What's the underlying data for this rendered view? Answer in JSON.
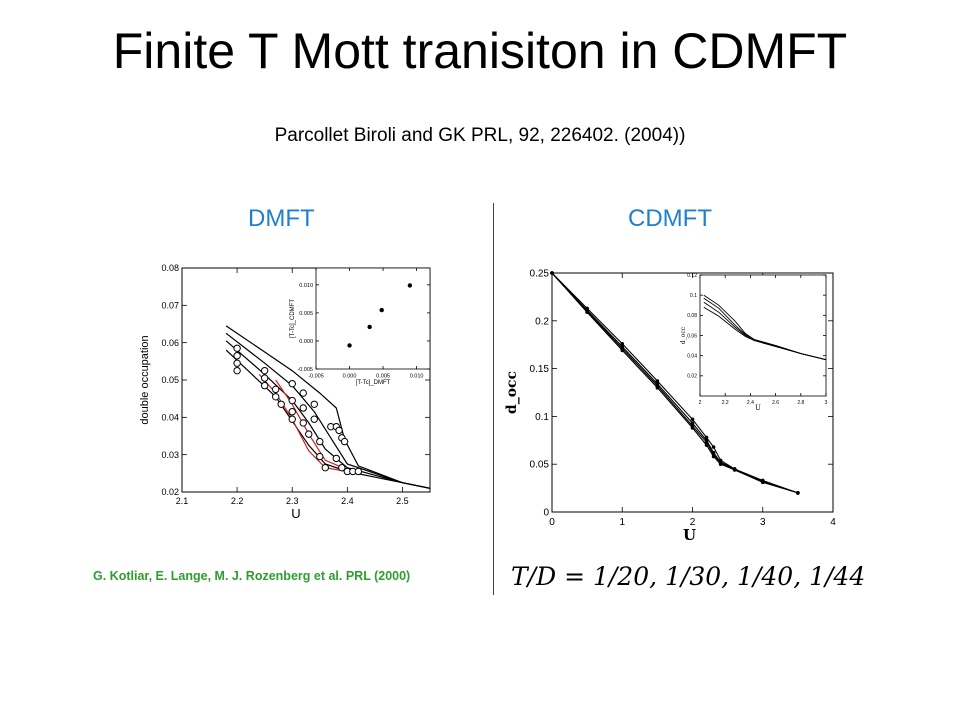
{
  "slide": {
    "title": "Finite T Mott tranisiton in CDMFT",
    "subtitle": "Parcollet Biroli and GK PRL,  92,  226402. (2004))",
    "left_heading": "DMFT",
    "right_heading": "CDMFT",
    "left_citation": "G. Kotliar, E. Lange, M. J. Rozenberg et al. PRL (2000)",
    "right_note": "T/D = 1/20, 1/30, 1/40, 1/44"
  },
  "chart_data": [
    {
      "id": "dmft-main",
      "type": "line",
      "xlabel": "U",
      "ylabel": "double occupation",
      "xlim": [
        2.1,
        2.55
      ],
      "ylim": [
        0.02,
        0.08
      ],
      "x_ticks": [
        "2.1",
        "2.2",
        "2.3",
        "2.4",
        "2.5"
      ],
      "y_ticks": [
        "0.02",
        "0.03",
        "0.04",
        "0.05",
        "0.06",
        "0.07",
        "0.08"
      ],
      "series": [
        {
          "color": "#000000",
          "points": [
            [
              2.18,
              0.0645
            ],
            [
              2.25,
              0.0575
            ],
            [
              2.3,
              0.0525
            ],
            [
              2.35,
              0.0465
            ],
            [
              2.38,
              0.0425
            ],
            [
              2.395,
              0.034
            ],
            [
              2.42,
              0.027
            ],
            [
              2.5,
              0.0225
            ],
            [
              2.55,
              0.021
            ]
          ]
        },
        {
          "color": "#000000",
          "points": [
            [
              2.18,
              0.0625
            ],
            [
              2.25,
              0.0545
            ],
            [
              2.3,
              0.0485
            ],
            [
              2.34,
              0.0415
            ],
            [
              2.37,
              0.0345
            ],
            [
              2.4,
              0.0275
            ],
            [
              2.5,
              0.0225
            ],
            [
              2.55,
              0.021
            ]
          ]
        },
        {
          "color": "#000000",
          "points": [
            [
              2.18,
              0.0605
            ],
            [
              2.25,
              0.0515
            ],
            [
              2.3,
              0.0445
            ],
            [
              2.33,
              0.0385
            ],
            [
              2.36,
              0.0315
            ],
            [
              2.4,
              0.0265
            ],
            [
              2.5,
              0.0225
            ],
            [
              2.55,
              0.021
            ]
          ]
        },
        {
          "color": "#000000",
          "points": [
            [
              2.18,
              0.058
            ],
            [
              2.22,
              0.0525
            ],
            [
              2.27,
              0.0455
            ],
            [
              2.3,
              0.039
            ],
            [
              2.33,
              0.0325
            ],
            [
              2.36,
              0.0275
            ],
            [
              2.4,
              0.0255
            ],
            [
              2.5,
              0.0225
            ],
            [
              2.55,
              0.021
            ]
          ]
        },
        {
          "color": "#cc2222",
          "points": [
            [
              2.24,
              0.0515
            ],
            [
              2.27,
              0.0465
            ],
            [
              2.3,
              0.0395
            ],
            [
              2.33,
              0.031
            ],
            [
              2.36,
              0.0265
            ],
            [
              2.4,
              0.0255
            ]
          ]
        },
        {
          "color": "#cc2222",
          "points": [
            [
              2.27,
              0.05
            ],
            [
              2.3,
              0.0435
            ],
            [
              2.33,
              0.0355
            ],
            [
              2.36,
              0.0285
            ],
            [
              2.4,
              0.026
            ]
          ]
        }
      ],
      "markers": [
        [
          2.2,
          0.0585
        ],
        [
          2.2,
          0.0565
        ],
        [
          2.2,
          0.0545
        ],
        [
          2.2,
          0.0525
        ],
        [
          2.25,
          0.0525
        ],
        [
          2.25,
          0.0505
        ],
        [
          2.25,
          0.0485
        ],
        [
          2.27,
          0.0475
        ],
        [
          2.27,
          0.0455
        ],
        [
          2.28,
          0.0435
        ],
        [
          2.3,
          0.049
        ],
        [
          2.3,
          0.0445
        ],
        [
          2.3,
          0.0415
        ],
        [
          2.3,
          0.0395
        ],
        [
          2.32,
          0.0465
        ],
        [
          2.32,
          0.0425
        ],
        [
          2.32,
          0.0385
        ],
        [
          2.33,
          0.0355
        ],
        [
          2.34,
          0.0435
        ],
        [
          2.34,
          0.0395
        ],
        [
          2.35,
          0.0335
        ],
        [
          2.35,
          0.0295
        ],
        [
          2.37,
          0.0375
        ],
        [
          2.38,
          0.0375
        ],
        [
          2.39,
          0.0345
        ],
        [
          2.385,
          0.0365
        ],
        [
          2.395,
          0.0335
        ],
        [
          2.38,
          0.029
        ],
        [
          2.39,
          0.0265
        ],
        [
          2.4,
          0.0255
        ],
        [
          2.41,
          0.0255
        ],
        [
          2.42,
          0.0255
        ],
        [
          2.36,
          0.0265
        ]
      ]
    },
    {
      "id": "dmft-inset",
      "type": "scatter",
      "xlabel": "[T-Tc]_DMFT",
      "ylabel": "[T-Tc]_CDMFT",
      "xlim": [
        -0.005,
        0.012
      ],
      "ylim": [
        -0.005,
        0.013
      ],
      "x_ticks": [
        "-0.005",
        "0.000",
        "0.005",
        "0.010"
      ],
      "y_ticks": [
        "-0.005",
        "0.000",
        "0.005",
        "0.010"
      ],
      "points": [
        [
          0.0,
          -0.0008
        ],
        [
          0.003,
          0.0025
        ],
        [
          0.0048,
          0.0055
        ],
        [
          0.009,
          0.0099
        ]
      ]
    },
    {
      "id": "cdmft-main",
      "type": "line",
      "xlabel": "U",
      "ylabel": "d_occ",
      "xlim": [
        0,
        4
      ],
      "ylim": [
        0,
        0.25
      ],
      "x_ticks": [
        "0",
        "1",
        "2",
        "3",
        "4"
      ],
      "y_ticks": [
        "0",
        "0.05",
        "0.1",
        "0.15",
        "0.2",
        "0.25"
      ],
      "series": [
        {
          "name": "1/20",
          "points": [
            [
              0,
              0.25
            ],
            [
              0.5,
              0.213
            ],
            [
              1,
              0.176
            ],
            [
              1.5,
              0.137
            ],
            [
              2,
              0.097
            ],
            [
              2.2,
              0.078
            ],
            [
              2.3,
              0.068
            ],
            [
              2.4,
              0.054
            ],
            [
              2.6,
              0.045
            ],
            [
              3,
              0.033
            ],
            [
              3.5,
              0.02
            ]
          ]
        },
        {
          "name": "1/30",
          "points": [
            [
              0,
              0.25
            ],
            [
              0.5,
              0.211
            ],
            [
              1,
              0.173
            ],
            [
              1.5,
              0.134
            ],
            [
              2,
              0.093
            ],
            [
              2.2,
              0.075
            ],
            [
              2.3,
              0.062
            ],
            [
              2.4,
              0.052
            ],
            [
              2.6,
              0.045
            ],
            [
              3,
              0.032
            ],
            [
              3.5,
              0.02
            ]
          ]
        },
        {
          "name": "1/40",
          "points": [
            [
              0,
              0.25
            ],
            [
              0.5,
              0.21
            ],
            [
              1,
              0.171
            ],
            [
              1.5,
              0.132
            ],
            [
              2,
              0.09
            ],
            [
              2.2,
              0.073
            ],
            [
              2.3,
              0.06
            ],
            [
              2.4,
              0.051
            ],
            [
              2.6,
              0.044
            ],
            [
              3,
              0.032
            ],
            [
              3.5,
              0.02
            ]
          ]
        },
        {
          "name": "1/44",
          "points": [
            [
              0,
              0.25
            ],
            [
              0.5,
              0.209
            ],
            [
              1,
              0.169
            ],
            [
              1.5,
              0.13
            ],
            [
              2,
              0.088
            ],
            [
              2.2,
              0.07
            ],
            [
              2.3,
              0.058
            ],
            [
              2.4,
              0.05
            ],
            [
              2.6,
              0.044
            ],
            [
              3,
              0.031
            ],
            [
              3.5,
              0.02
            ]
          ]
        }
      ]
    },
    {
      "id": "cdmft-inset",
      "type": "line",
      "xlabel": "U",
      "ylabel": "d_occ",
      "xlim": [
        2,
        3
      ],
      "ylim": [
        0,
        0.12
      ],
      "x_ticks": [
        "2",
        "2.2",
        "2.4",
        "2.6",
        "2.8",
        "3"
      ],
      "y_ticks": [
        "0.02",
        "0.04",
        "0.06",
        "0.08",
        "0.1",
        "0.12"
      ],
      "series": [
        {
          "points": [
            [
              2.03,
              0.1
            ],
            [
              2.15,
              0.09
            ],
            [
              2.28,
              0.074
            ],
            [
              2.36,
              0.062
            ],
            [
              2.43,
              0.056
            ],
            [
              2.6,
              0.05
            ],
            [
              2.8,
              0.042
            ],
            [
              3.0,
              0.036
            ]
          ]
        },
        {
          "points": [
            [
              2.03,
              0.097
            ],
            [
              2.15,
              0.087
            ],
            [
              2.28,
              0.07
            ],
            [
              2.36,
              0.061
            ],
            [
              2.43,
              0.056
            ],
            [
              2.6,
              0.05
            ],
            [
              2.8,
              0.042
            ],
            [
              3.0,
              0.036
            ]
          ]
        },
        {
          "points": [
            [
              2.03,
              0.093
            ],
            [
              2.15,
              0.083
            ],
            [
              2.28,
              0.068
            ],
            [
              2.36,
              0.06
            ],
            [
              2.43,
              0.055
            ],
            [
              2.6,
              0.05
            ],
            [
              2.8,
              0.042
            ],
            [
              3.0,
              0.036
            ]
          ]
        },
        {
          "points": [
            [
              2.03,
              0.088
            ],
            [
              2.15,
              0.079
            ],
            [
              2.28,
              0.066
            ],
            [
              2.36,
              0.059
            ],
            [
              2.43,
              0.055
            ],
            [
              2.6,
              0.049
            ],
            [
              2.8,
              0.042
            ],
            [
              3.0,
              0.036
            ]
          ]
        }
      ]
    }
  ]
}
